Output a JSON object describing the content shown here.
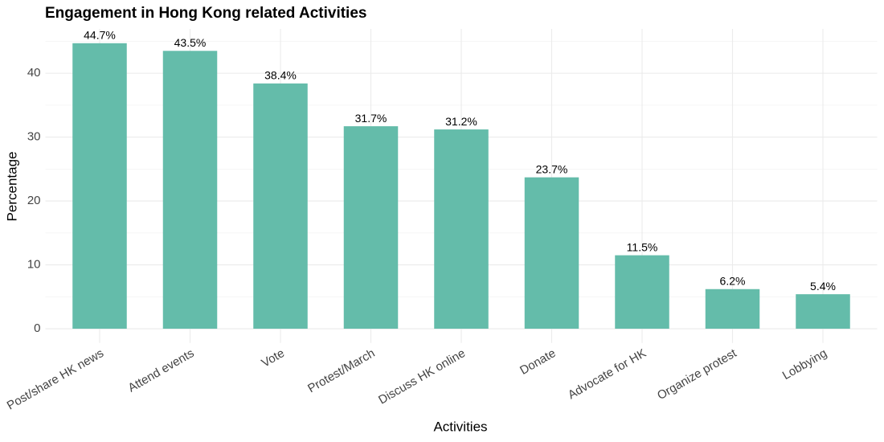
{
  "chart_data": {
    "type": "bar",
    "title": "Engagement in Hong Kong related Activities",
    "x_label": "Activities",
    "y_label": "Percentage",
    "categories": [
      "Post/share HK news",
      "Attend events",
      "Vote",
      "Protest/March",
      "Discuss HK online",
      "Donate",
      "Advocate for HK",
      "Organize protest",
      "Lobbying"
    ],
    "values": [
      44.7,
      43.5,
      38.4,
      31.7,
      31.2,
      23.7,
      11.5,
      6.2,
      5.4
    ],
    "value_labels": [
      "44.7%",
      "43.5%",
      "38.4%",
      "31.7%",
      "31.2%",
      "23.7%",
      "11.5%",
      "6.2%",
      "5.4%"
    ],
    "color": "#64bcaa",
    "ylim": [
      -2.235,
      46.935
    ],
    "yticks": [
      0,
      10,
      20,
      30,
      40
    ],
    "minor_yticks": [
      5,
      15,
      25,
      35,
      45
    ],
    "grid": true
  }
}
